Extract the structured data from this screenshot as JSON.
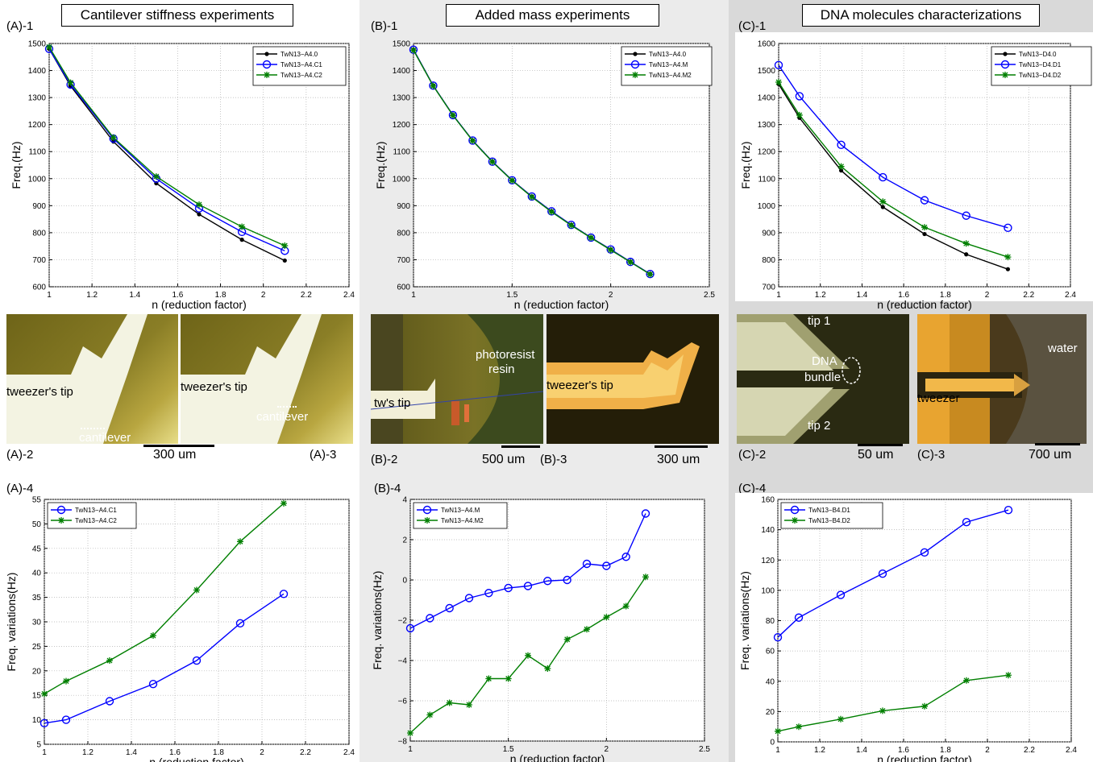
{
  "columns": {
    "A": {
      "title": "Cantilever stiffness experiments"
    },
    "B": {
      "title": "Added mass experiments"
    },
    "C": {
      "title": "DNA molecules characterizations"
    }
  },
  "panel_labels": {
    "a1": "(A)-1",
    "a2": "(A)-2",
    "a3": "(A)-3",
    "a4": "(A)-4",
    "b1": "(B)-1",
    "b2": "(B)-2",
    "b3": "(B)-3",
    "b4": "(B)-4",
    "c1": "(C)-1",
    "c2": "(C)-2",
    "c3": "(C)-3",
    "c4": "(C)-4"
  },
  "images": {
    "a2": {
      "tip": "tweezer's tip",
      "cantilever": "cantilever"
    },
    "a3": {
      "tip": "tweezer's tip",
      "cantilever": "cantilever"
    },
    "a_scale": "300 um",
    "b2": {
      "tip": "tw's tip",
      "resin_line1": "photoresist",
      "resin_line2": "resin",
      "scale": "500 um"
    },
    "b3": {
      "tip": "tweezer's tip",
      "scale": "300 um"
    },
    "c2": {
      "tip1": "tip 1",
      "tip2": "tip 2",
      "dna_line1": "DNA",
      "dna_line2": "bundle",
      "scale": "50 um"
    },
    "c3": {
      "water": "water",
      "tweezer": "tweezer",
      "scale": "700 um"
    }
  },
  "colors": {
    "black": "#000000",
    "blue": "#0000ff",
    "green": "#007f00"
  },
  "chart_data": [
    {
      "id": "A1",
      "type": "line",
      "xlabel": "n (reduction factor)",
      "ylabel": "Freq.(Hz)",
      "xlim": [
        1,
        2.4
      ],
      "ylim": [
        600,
        1500
      ],
      "xticks": [
        1,
        1.2,
        1.4,
        1.6,
        1.8,
        2,
        2.2,
        2.4
      ],
      "yticks": [
        600,
        700,
        800,
        900,
        1000,
        1100,
        1200,
        1300,
        1400,
        1500
      ],
      "grid": true,
      "legend": "top-right",
      "series": [
        {
          "name": "TwN13−A4.0",
          "marker": "dot",
          "color": "#000000",
          "x": [
            1,
            1.1,
            1.3,
            1.5,
            1.7,
            1.9,
            2.1
          ],
          "y": [
            1480,
            1343,
            1137,
            983,
            868,
            774,
            697
          ]
        },
        {
          "name": "TwN13−A4.C1",
          "marker": "circle",
          "color": "#0000ff",
          "x": [
            1,
            1.1,
            1.3,
            1.5,
            1.7,
            1.9,
            2.1
          ],
          "y": [
            1480,
            1348,
            1148,
            1000,
            890,
            803,
            733
          ]
        },
        {
          "name": "TwN13−A4.C2",
          "marker": "star",
          "color": "#007f00",
          "x": [
            1,
            1.1,
            1.3,
            1.5,
            1.7,
            1.9,
            2.1
          ],
          "y": [
            1487,
            1355,
            1152,
            1008,
            904,
            822,
            752
          ]
        }
      ]
    },
    {
      "id": "B1",
      "type": "line",
      "xlabel": "n (reduction factor)",
      "ylabel": "Freq.(Hz)",
      "xlim": [
        1,
        2.5
      ],
      "ylim": [
        600,
        1500
      ],
      "xticks": [
        1,
        1.5,
        2,
        2.5
      ],
      "yticks": [
        600,
        700,
        800,
        900,
        1000,
        1100,
        1200,
        1300,
        1400,
        1500
      ],
      "grid": true,
      "legend": "top-right",
      "series": [
        {
          "name": "TwN13−A4.0",
          "marker": "dot",
          "color": "#000000",
          "x": [
            1,
            1.1,
            1.2,
            1.3,
            1.4,
            1.5,
            1.6,
            1.7,
            1.8,
            1.9,
            2,
            2.1,
            2.2
          ],
          "y": [
            1477,
            1344,
            1235,
            1141,
            1063,
            994,
            934,
            879,
            829,
            782,
            738,
            692,
            647
          ]
        },
        {
          "name": "TwN13−A4.M",
          "marker": "circle",
          "color": "#0000ff",
          "x": [
            1,
            1.1,
            1.2,
            1.3,
            1.4,
            1.5,
            1.6,
            1.7,
            1.8,
            1.9,
            2,
            2.1,
            2.2
          ],
          "y": [
            1477,
            1344,
            1235,
            1141,
            1063,
            994,
            934,
            879,
            829,
            782,
            738,
            692,
            647
          ]
        },
        {
          "name": "TwN13−A4.M2",
          "marker": "star",
          "color": "#007f00",
          "x": [
            1,
            1.1,
            1.2,
            1.3,
            1.4,
            1.5,
            1.6,
            1.7,
            1.8,
            1.9,
            2,
            2.1,
            2.2
          ],
          "y": [
            1475,
            1343,
            1234,
            1140,
            1062,
            993,
            932,
            877,
            827,
            781,
            736,
            691,
            646
          ]
        }
      ]
    },
    {
      "id": "C1",
      "type": "line",
      "xlabel": "n (reduction factor)",
      "ylabel": "Freq.(Hz)",
      "xlim": [
        1,
        2.4
      ],
      "ylim": [
        700,
        1600
      ],
      "xticks": [
        1,
        1.2,
        1.4,
        1.6,
        1.8,
        2,
        2.2,
        2.4
      ],
      "yticks": [
        700,
        800,
        900,
        1000,
        1100,
        1200,
        1300,
        1400,
        1500,
        1600
      ],
      "grid": true,
      "legend": "top-right",
      "series": [
        {
          "name": "TwN13−D4.0",
          "marker": "dot",
          "color": "#000000",
          "x": [
            1,
            1.1,
            1.3,
            1.5,
            1.7,
            1.9,
            2.1
          ],
          "y": [
            1450,
            1325,
            1130,
            995,
            895,
            820,
            765
          ]
        },
        {
          "name": "TwN13−D4.D1",
          "marker": "circle",
          "color": "#0000ff",
          "x": [
            1,
            1.1,
            1.3,
            1.5,
            1.7,
            1.9,
            2.1
          ],
          "y": [
            1520,
            1405,
            1225,
            1105,
            1020,
            963,
            918
          ]
        },
        {
          "name": "TwN13−D4.D2",
          "marker": "star",
          "color": "#007f00",
          "x": [
            1,
            1.1,
            1.3,
            1.5,
            1.7,
            1.9,
            2.1
          ],
          "y": [
            1457,
            1335,
            1145,
            1015,
            920,
            860,
            810
          ]
        }
      ]
    },
    {
      "id": "A4",
      "type": "line",
      "xlabel": "n (reduction factor)",
      "ylabel": "Freq. variations(Hz)",
      "xlim": [
        1,
        2.4
      ],
      "ylim": [
        5,
        55
      ],
      "xticks": [
        1,
        1.2,
        1.4,
        1.6,
        1.8,
        2,
        2.2,
        2.4
      ],
      "yticks": [
        5,
        10,
        15,
        20,
        25,
        30,
        35,
        40,
        45,
        50,
        55
      ],
      "grid": true,
      "legend": "top-left",
      "series": [
        {
          "name": "TwN13−A4.C1",
          "marker": "circle",
          "color": "#0000ff",
          "x": [
            1,
            1.1,
            1.3,
            1.5,
            1.7,
            1.9,
            2.1
          ],
          "y": [
            9.3,
            10,
            13.8,
            17.3,
            22.1,
            29.7,
            35.7
          ]
        },
        {
          "name": "TwN13−A4.C2",
          "marker": "star",
          "color": "#007f00",
          "x": [
            1,
            1.1,
            1.3,
            1.5,
            1.7,
            1.9,
            2.1
          ],
          "y": [
            15.3,
            17.9,
            22.1,
            27.2,
            36.5,
            46.4,
            54.2
          ]
        }
      ]
    },
    {
      "id": "B4",
      "type": "line",
      "xlabel": "n (reduction factor)",
      "ylabel": "Freq. variations(Hz)",
      "xlim": [
        1,
        2.5
      ],
      "ylim": [
        -8,
        4
      ],
      "xticks": [
        1,
        1.5,
        2,
        2.5
      ],
      "yticks": [
        -8,
        -6,
        -4,
        -2,
        0,
        2,
        4
      ],
      "grid": true,
      "legend": "top-left",
      "series": [
        {
          "name": "TwN13−A4.M",
          "marker": "circle",
          "color": "#0000ff",
          "x": [
            1,
            1.1,
            1.2,
            1.3,
            1.4,
            1.5,
            1.6,
            1.7,
            1.8,
            1.9,
            2,
            2.1,
            2.2
          ],
          "y": [
            -2.4,
            -1.9,
            -1.4,
            -0.9,
            -0.65,
            -0.4,
            -0.3,
            -0.05,
            0,
            0.8,
            0.7,
            1.15,
            3.3
          ]
        },
        {
          "name": "TwN13−A4.M2",
          "marker": "star",
          "color": "#007f00",
          "x": [
            1,
            1.1,
            1.2,
            1.3,
            1.4,
            1.5,
            1.6,
            1.7,
            1.8,
            1.9,
            2,
            2.1,
            2.2
          ],
          "y": [
            -7.6,
            -6.7,
            -6.1,
            -6.2,
            -4.9,
            -4.9,
            -3.75,
            -4.4,
            -2.95,
            -2.45,
            -1.85,
            -1.3,
            0.15
          ]
        }
      ]
    },
    {
      "id": "C4",
      "type": "line",
      "xlabel": "n (reduction factor)",
      "ylabel": "Freq. variations(Hz)",
      "xlim": [
        1,
        2.4
      ],
      "ylim": [
        0,
        160
      ],
      "xticks": [
        1,
        1.2,
        1.4,
        1.6,
        1.8,
        2,
        2.2,
        2.4
      ],
      "yticks": [
        0,
        20,
        40,
        60,
        80,
        100,
        120,
        140,
        160
      ],
      "grid": true,
      "legend": "top-left",
      "series": [
        {
          "name": "TwN13−B4.D1",
          "marker": "circle",
          "color": "#0000ff",
          "x": [
            1,
            1.1,
            1.3,
            1.5,
            1.7,
            1.9,
            2.1
          ],
          "y": [
            69,
            82,
            97,
            111,
            125,
            145,
            153
          ]
        },
        {
          "name": "TwN13−B4.D2",
          "marker": "star",
          "color": "#007f00",
          "x": [
            1,
            1.1,
            1.3,
            1.5,
            1.7,
            1.9,
            2.1
          ],
          "y": [
            7,
            10,
            15,
            20.5,
            23.5,
            40.5,
            44
          ]
        }
      ]
    }
  ]
}
